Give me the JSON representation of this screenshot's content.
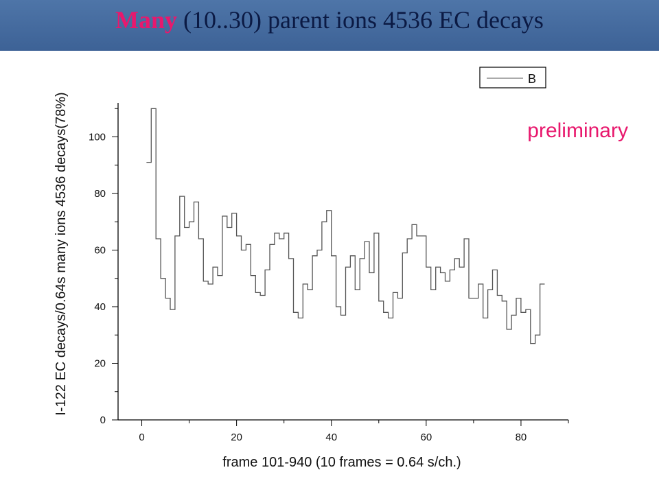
{
  "slide": {
    "title_highlight": "Many",
    "title_rest": " (10..30) parent ions 4536 EC decays"
  },
  "colors": {
    "title_bar": "#3f6599",
    "title_highlight": "#e8186d",
    "annotation": "#e8186d",
    "line": "#555555"
  },
  "chart_data": {
    "type": "line",
    "title": "",
    "xlabel": "frame 101-940 (10 frames = 0.64 s/ch.)",
    "ylabel": "I-122 EC decays/0.64s many ions 4536 decays(78%)",
    "xlim": [
      -5,
      90
    ],
    "ylim": [
      0,
      112
    ],
    "xticks": [
      0,
      20,
      40,
      60,
      80
    ],
    "yticks": [
      0,
      20,
      40,
      60,
      80,
      100
    ],
    "grid": false,
    "legend": {
      "entries": [
        "B"
      ],
      "placement": "top-right"
    },
    "annotation": "preliminary",
    "series": [
      {
        "name": "B",
        "style": "step",
        "x": [
          1,
          2,
          3,
          4,
          5,
          6,
          7,
          8,
          9,
          10,
          11,
          12,
          13,
          14,
          15,
          16,
          17,
          18,
          19,
          20,
          21,
          22,
          23,
          24,
          25,
          26,
          27,
          28,
          29,
          30,
          31,
          32,
          33,
          34,
          35,
          36,
          37,
          38,
          39,
          40,
          41,
          42,
          43,
          44,
          45,
          46,
          47,
          48,
          49,
          50,
          51,
          52,
          53,
          54,
          55,
          56,
          57,
          58,
          59,
          60,
          61,
          62,
          63,
          64,
          65,
          66,
          67,
          68,
          69,
          70,
          71,
          72,
          73,
          74,
          75,
          76,
          77,
          78,
          79,
          80,
          81,
          82,
          83,
          84
        ],
        "values": [
          91,
          110,
          64,
          50,
          43,
          39,
          65,
          79,
          68,
          70,
          77,
          64,
          49,
          48,
          54,
          51,
          72,
          68,
          73,
          65,
          60,
          62,
          51,
          45,
          44,
          53,
          62,
          66,
          64,
          66,
          57,
          38,
          36,
          48,
          46,
          58,
          60,
          70,
          74,
          58,
          40,
          37,
          54,
          58,
          46,
          57,
          63,
          52,
          66,
          42,
          38,
          36,
          45,
          43,
          59,
          64,
          69,
          65,
          65,
          54,
          46,
          54,
          52,
          49,
          53,
          57,
          54,
          64,
          43,
          43,
          48,
          36,
          46,
          53,
          44,
          42,
          32,
          37,
          43,
          38,
          39,
          27,
          30,
          48
        ]
      }
    ]
  }
}
